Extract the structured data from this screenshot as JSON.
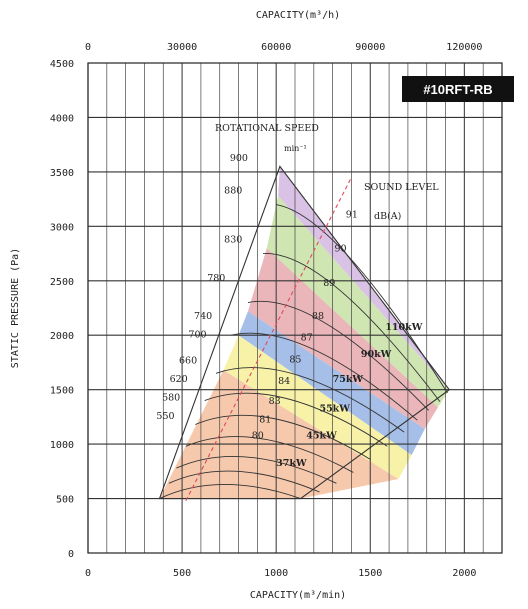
{
  "chart_data": {
    "type": "line",
    "badge": "#10RFT-RB",
    "xlabel_bottom": "CAPACITY(m³/min)",
    "xlabel_top": "CAPACITY(m³/h)",
    "ylabel": "STATIC PRESSURE (Pa)",
    "xlim": [
      0,
      2200
    ],
    "ylim": [
      0,
      4500
    ],
    "x_ticks": [
      "0",
      "500",
      "1000",
      "1500",
      "2000"
    ],
    "x_top_ticks": [
      "0",
      "30000",
      "60000",
      "90000",
      "120000"
    ],
    "y_ticks": [
      "0",
      "500",
      "1000",
      "1500",
      "2000",
      "2500",
      "3000",
      "3500",
      "4000",
      "4500"
    ],
    "grid": true,
    "rotational_speed_title": "ROTATIONAL SPEED",
    "rotational_speed_unit": "min⁻¹",
    "sound_level_title": "SOUND LEVEL",
    "sound_level_unit": "dB(A)",
    "envelope": [
      [
        380,
        500
      ],
      [
        1020,
        3550
      ],
      [
        1920,
        1500
      ],
      [
        1130,
        500
      ]
    ],
    "bands": [
      {
        "power": "37kW",
        "color": "#f6c9ad",
        "upper": [
          [
            380,
            500
          ],
          [
            720,
            1680
          ],
          [
            1650,
            680
          ],
          [
            1130,
            500
          ]
        ]
      },
      {
        "power": "45kW",
        "color": "#f7f2a8",
        "upper": [
          [
            720,
            1680
          ],
          [
            800,
            2000
          ],
          [
            1720,
            900
          ],
          [
            1650,
            680
          ]
        ]
      },
      {
        "power": "55kW",
        "color": "#a5bfe8",
        "upper": [
          [
            800,
            2000
          ],
          [
            850,
            2220
          ],
          [
            1790,
            1140
          ],
          [
            1720,
            900
          ]
        ]
      },
      {
        "power": "75kW",
        "color": "#eab6ba",
        "upper": [
          [
            850,
            2220
          ],
          [
            950,
            2800
          ],
          [
            1860,
            1340
          ],
          [
            1790,
            1140
          ]
        ]
      },
      {
        "power": "90kW",
        "color": "#cfe6b2",
        "upper": [
          [
            950,
            2800
          ],
          [
            1010,
            3280
          ],
          [
            1920,
            1500
          ],
          [
            1860,
            1340
          ]
        ]
      },
      {
        "power": "110kW",
        "color": "#d9c2e6",
        "upper": [
          [
            1010,
            3280
          ],
          [
            1020,
            3550
          ],
          [
            1920,
            1500
          ]
        ]
      }
    ],
    "power_labels": [
      {
        "text": "37kW",
        "x": 1000,
        "y": 800
      },
      {
        "text": "45kW",
        "x": 1160,
        "y": 1050
      },
      {
        "text": "55kW",
        "x": 1230,
        "y": 1300
      },
      {
        "text": "75kW",
        "x": 1300,
        "y": 1570
      },
      {
        "text": "90kW",
        "x": 1450,
        "y": 1800
      },
      {
        "text": "110kW",
        "x": 1580,
        "y": 2050
      }
    ],
    "speed_labels": [
      {
        "text": "900",
        "x": 850,
        "y": 3600
      },
      {
        "text": "880",
        "x": 820,
        "y": 3300
      },
      {
        "text": "830",
        "x": 820,
        "y": 2850
      },
      {
        "text": "780",
        "x": 730,
        "y": 2500
      },
      {
        "text": "740",
        "x": 660,
        "y": 2150
      },
      {
        "text": "700",
        "x": 630,
        "y": 1980
      },
      {
        "text": "660",
        "x": 580,
        "y": 1740
      },
      {
        "text": "620",
        "x": 530,
        "y": 1570
      },
      {
        "text": "580",
        "x": 490,
        "y": 1400
      },
      {
        "text": "550",
        "x": 460,
        "y": 1230
      }
    ],
    "sound_labels": [
      {
        "text": "91",
        "x": 1370,
        "y": 3080
      },
      {
        "text": "90",
        "x": 1310,
        "y": 2770
      },
      {
        "text": "89",
        "x": 1250,
        "y": 2450
      },
      {
        "text": "88",
        "x": 1190,
        "y": 2150
      },
      {
        "text": "87",
        "x": 1130,
        "y": 1950
      },
      {
        "text": "85",
        "x": 1070,
        "y": 1750
      },
      {
        "text": "84",
        "x": 1010,
        "y": 1550
      },
      {
        "text": "83",
        "x": 960,
        "y": 1370
      },
      {
        "text": "81",
        "x": 910,
        "y": 1200
      },
      {
        "text": "80",
        "x": 870,
        "y": 1050
      }
    ],
    "sound_line": [
      [
        520,
        480
      ],
      [
        1400,
        3450
      ]
    ],
    "speed_curves": [
      [
        [
          380,
          500
        ],
        [
          700,
          760
        ],
        [
          1130,
          500
        ]
      ],
      [
        [
          430,
          640
        ],
        [
          760,
          900
        ],
        [
          1230,
          560
        ]
      ],
      [
        [
          470,
          780
        ],
        [
          820,
          1050
        ],
        [
          1320,
          640
        ]
      ],
      [
        [
          520,
          980
        ],
        [
          880,
          1240
        ],
        [
          1410,
          740
        ]
      ],
      [
        [
          570,
          1180
        ],
        [
          940,
          1450
        ],
        [
          1500,
          860
        ]
      ],
      [
        [
          620,
          1400
        ],
        [
          1000,
          1650
        ],
        [
          1590,
          980
        ]
      ],
      [
        [
          680,
          1650
        ],
        [
          1060,
          1880
        ],
        [
          1680,
          1110
        ]
      ],
      [
        [
          760,
          2000
        ],
        [
          1130,
          2140
        ],
        [
          1750,
          1220
        ]
      ],
      [
        [
          850,
          2300
        ],
        [
          1190,
          2420
        ],
        [
          1810,
          1310
        ]
      ],
      [
        [
          930,
          2750
        ],
        [
          1260,
          2780
        ],
        [
          1870,
          1390
        ]
      ],
      [
        [
          1000,
          3200
        ],
        [
          1320,
          3100
        ],
        [
          1910,
          1470
        ]
      ]
    ]
  }
}
